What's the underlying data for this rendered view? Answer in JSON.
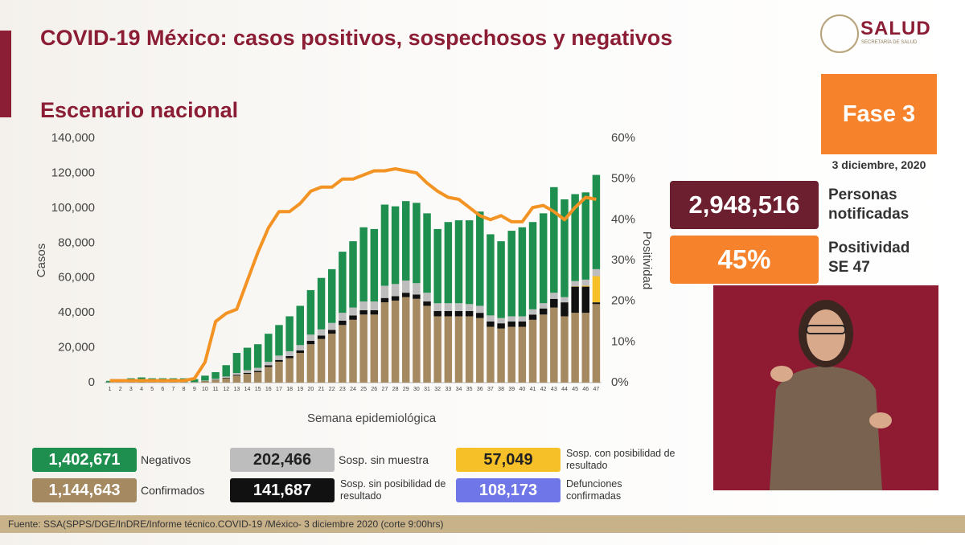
{
  "header": {
    "title": "COVID-19 México: casos positivos, sospechosos y negativos",
    "subtitle": "Escenario nacional"
  },
  "logo": {
    "name": "SALUD",
    "subtitle": "SECRETARÍA DE SALUD"
  },
  "phase": {
    "label": "Fase 3",
    "date": "3 diciembre, 2020"
  },
  "stats": [
    {
      "value": "2,948,516",
      "label": "Personas notificadas"
    },
    {
      "value": "45%",
      "label": "Positividad SE 47"
    }
  ],
  "deaths": {
    "value": "108,173",
    "label": "Defunciones confirmadas"
  },
  "footer": "Fuente: SSA(SPPS/DGE/InDRE/Informe técnico.COVID-19 /México- 3 diciembre 2020 (corte 9:00hrs)",
  "chart_data": {
    "type": "bar",
    "stacked": true,
    "xlabel": "Semana epidemiológica",
    "ylabel": "Casos",
    "y2label": "Positividad",
    "categories": [
      1,
      2,
      3,
      4,
      5,
      6,
      7,
      8,
      9,
      10,
      11,
      12,
      13,
      14,
      15,
      16,
      17,
      18,
      19,
      20,
      21,
      22,
      23,
      24,
      25,
      26,
      27,
      28,
      29,
      30,
      31,
      32,
      33,
      34,
      35,
      36,
      37,
      38,
      39,
      40,
      41,
      42,
      43,
      44,
      45,
      46,
      47
    ],
    "ylim": [
      0,
      140000
    ],
    "yticks": [
      0,
      {
        "value": 20000,
        "label": "20,000"
      },
      {
        "value": 40000,
        "label": "40,000"
      },
      {
        "value": 60000,
        "label": "60,000"
      },
      {
        "value": 80000,
        "label": "80,000"
      },
      {
        "value": 100000,
        "label": "100,000"
      },
      {
        "value": 120000,
        "label": "120,000"
      },
      {
        "value": 140000,
        "label": "140,000"
      }
    ],
    "y2lim": [
      0,
      60
    ],
    "y2ticks": [
      {
        "value": 0,
        "label": "0%"
      },
      {
        "value": 10,
        "label": "10%"
      },
      {
        "value": 20,
        "label": "20%"
      },
      {
        "value": 30,
        "label": "30%"
      },
      {
        "value": 40,
        "label": "40%"
      },
      {
        "value": 50,
        "label": "50%"
      },
      {
        "value": 60,
        "label": "60%"
      }
    ],
    "series": [
      {
        "name": "Confirmados",
        "total": "1,144,643",
        "color": "#a58a61",
        "values": [
          100,
          150,
          200,
          250,
          200,
          200,
          200,
          200,
          200,
          800,
          1500,
          2500,
          4000,
          5000,
          6000,
          9000,
          12000,
          14000,
          17000,
          22000,
          25000,
          28000,
          33000,
          36000,
          39000,
          39000,
          46000,
          47000,
          49000,
          48000,
          44000,
          38000,
          38000,
          38000,
          38000,
          37000,
          32000,
          31000,
          32000,
          32000,
          36000,
          39000,
          43000,
          38000,
          40000,
          40000,
          45000
        ]
      },
      {
        "name": "Sosp. sin posibilidad de resultado",
        "total": "141,687",
        "color": "#111111",
        "values": [
          0,
          0,
          0,
          0,
          0,
          0,
          0,
          0,
          0,
          100,
          200,
          300,
          500,
          600,
          700,
          900,
          1000,
          1200,
          1500,
          2000,
          2000,
          2200,
          2500,
          2500,
          2500,
          2500,
          2500,
          2500,
          2500,
          2500,
          2500,
          3000,
          3000,
          3000,
          3000,
          3000,
          3000,
          3000,
          3000,
          3000,
          3000,
          3500,
          5000,
          8000,
          15000,
          15000,
          1000
        ]
      },
      {
        "name": "Sosp. con posibilidad de resultado",
        "total": "57,049",
        "color": "#f6c029",
        "values": [
          0,
          0,
          0,
          0,
          0,
          0,
          0,
          0,
          0,
          0,
          0,
          0,
          0,
          0,
          0,
          0,
          0,
          0,
          0,
          0,
          0,
          0,
          0,
          0,
          0,
          0,
          0,
          0,
          0,
          0,
          0,
          0,
          0,
          0,
          0,
          0,
          0,
          0,
          0,
          0,
          0,
          0,
          0,
          0,
          200,
          500,
          15000
        ]
      },
      {
        "name": "Sosp. sin muestra",
        "total": "202,466",
        "color": "#bdbdbd",
        "values": [
          100,
          100,
          100,
          100,
          100,
          100,
          100,
          100,
          100,
          300,
          500,
          700,
          1000,
          1500,
          1800,
          2000,
          2500,
          2800,
          3000,
          3500,
          3500,
          4000,
          4500,
          4500,
          5000,
          5000,
          7000,
          7000,
          7000,
          6500,
          5000,
          4500,
          4500,
          4500,
          4000,
          4000,
          3500,
          3000,
          3000,
          3000,
          3000,
          3000,
          3500,
          3000,
          3000,
          3500,
          4000
        ]
      },
      {
        "name": "Negativos",
        "total": "1,402,671",
        "color": "#1e8f4e",
        "values": [
          800,
          1250,
          2200,
          2650,
          2200,
          2200,
          2200,
          2200,
          1700,
          2800,
          3800,
          6500,
          11500,
          12900,
          13500,
          16100,
          17500,
          20000,
          22500,
          25500,
          29500,
          30800,
          35000,
          38000,
          42500,
          41500,
          46500,
          44500,
          45500,
          46000,
          45500,
          42500,
          46500,
          47500,
          48000,
          54000,
          46500,
          44000,
          49000,
          51000,
          50000,
          51500,
          60500,
          56000,
          49800,
          50000,
          54000
        ]
      },
      {
        "name": "Positividad",
        "type": "line",
        "axis": "y2",
        "color": "#f39323",
        "values": [
          0.5,
          0.5,
          0.5,
          0.5,
          0.5,
          0.5,
          0.5,
          0.5,
          1,
          5,
          15,
          17,
          18,
          25,
          32,
          38,
          42,
          42,
          44,
          47,
          48,
          48,
          50,
          50,
          51,
          52,
          52,
          52.5,
          52,
          51.5,
          49,
          47,
          45.5,
          45,
          43,
          41,
          40,
          41,
          39.5,
          39.5,
          43,
          43.5,
          42,
          40,
          43,
          45.5,
          45
        ]
      }
    ]
  }
}
